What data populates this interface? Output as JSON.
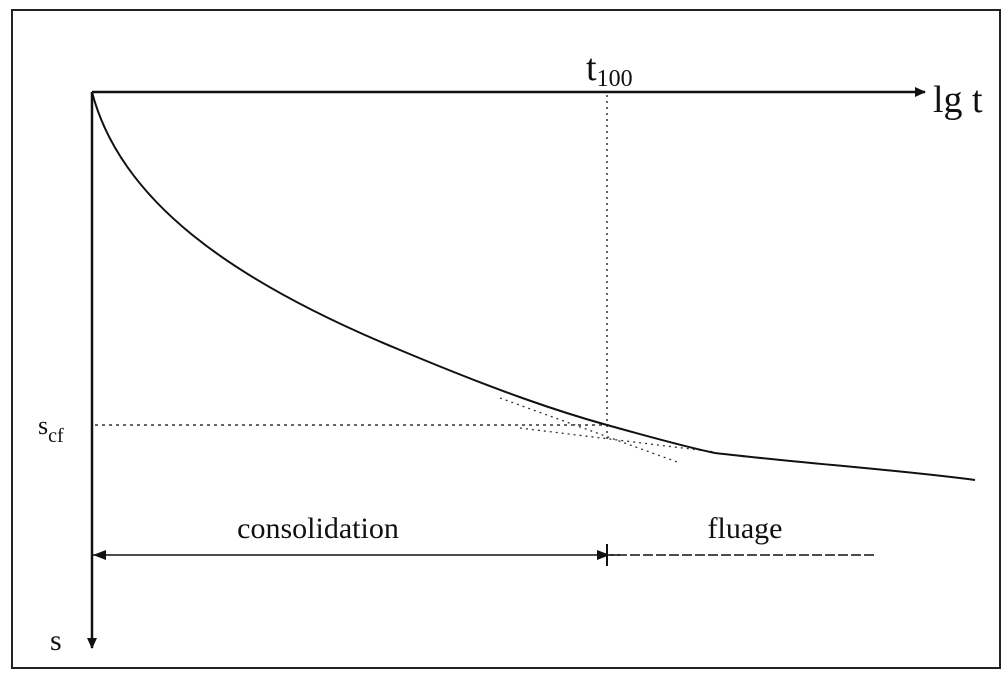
{
  "axes": {
    "x_label": "lg t",
    "y_label": "s"
  },
  "markers": {
    "t100": {
      "base": "t",
      "sub": "100"
    },
    "scf": {
      "base": "s",
      "sub": "cf"
    }
  },
  "regions": [
    "consolidation",
    "fluage"
  ]
}
